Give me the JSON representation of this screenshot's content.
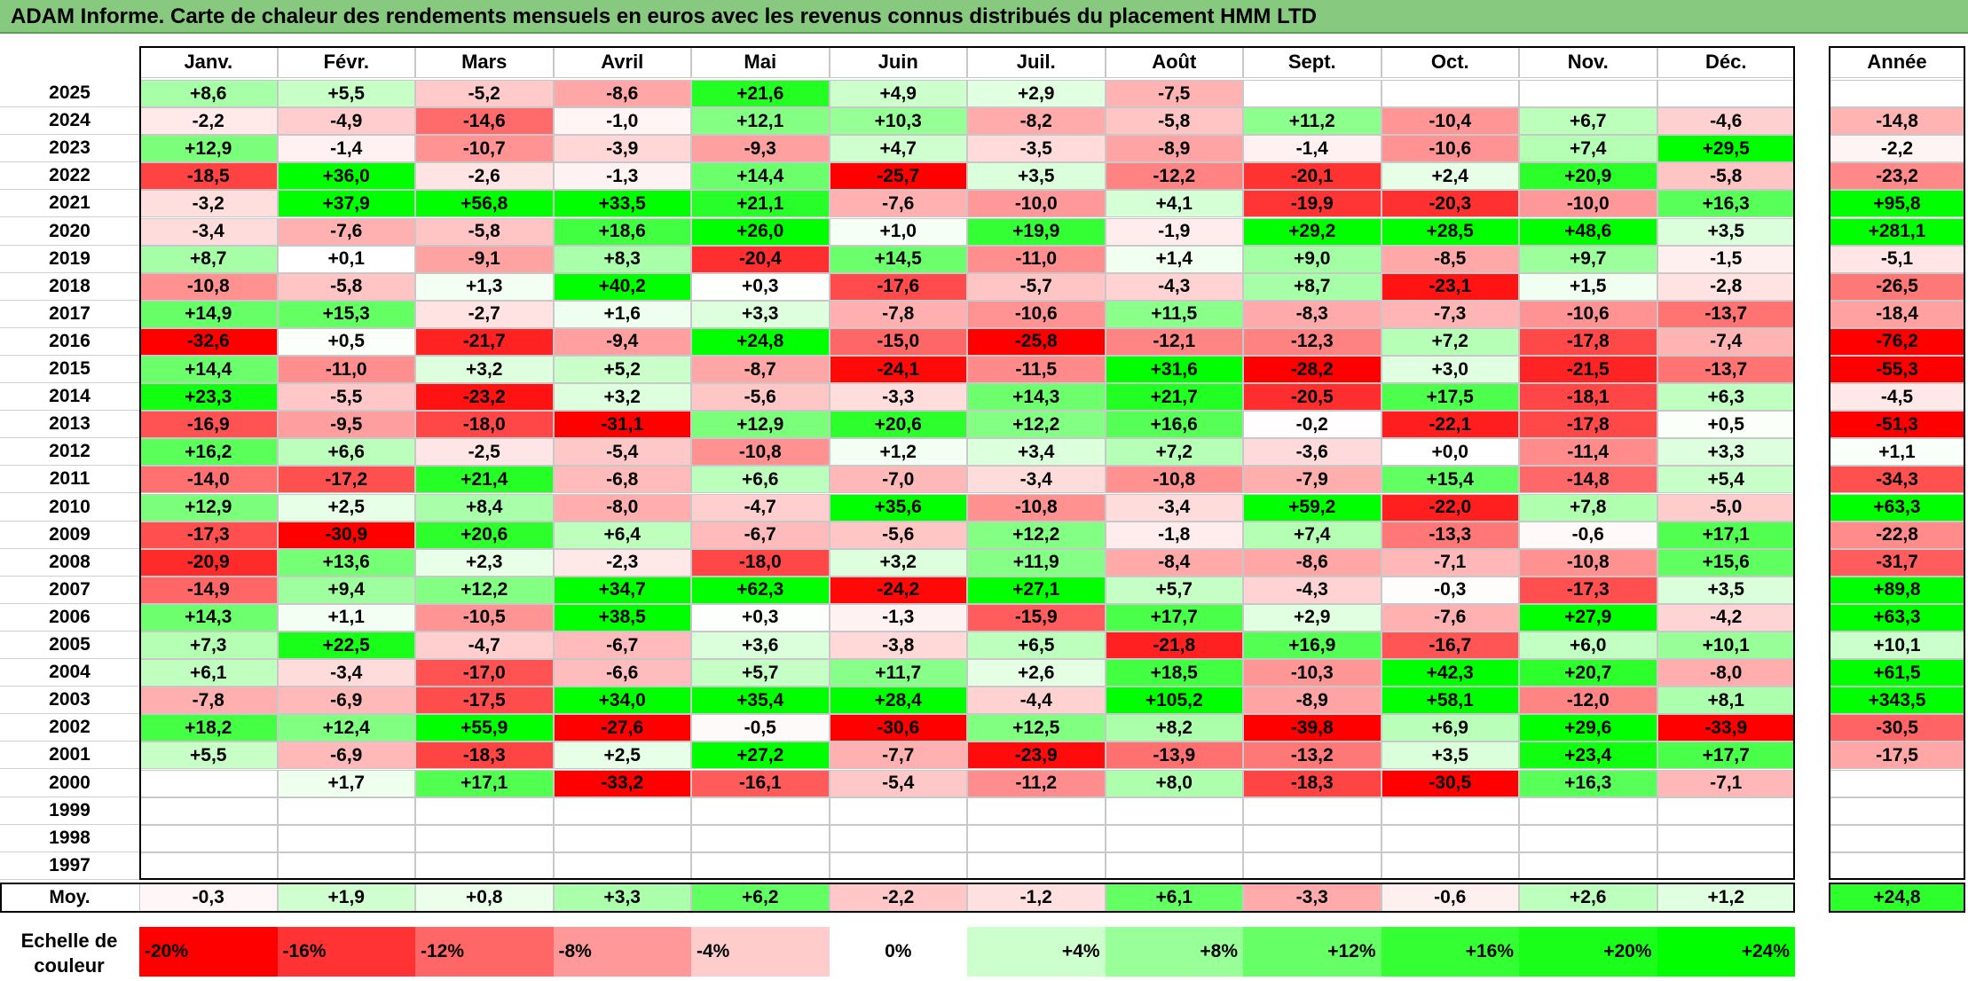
{
  "title": "ADAM Informe. Carte de chaleur des rendements mensuels en euros avec les revenus connus distribués du placement HMM LTD",
  "chart_data": {
    "type": "heatmap",
    "title": "ADAM Informe. Carte de chaleur des rendements mensuels en euros avec les revenus connus distribués du placement HMM LTD",
    "columns": [
      "Janv.",
      "Févr.",
      "Mars",
      "Avril",
      "Mai",
      "Juin",
      "Juil.",
      "Août",
      "Sept.",
      "Oct.",
      "Nov.",
      "Déc."
    ],
    "year_header": "Année",
    "rows": [
      {
        "year": "2025",
        "months": [
          "+8,6",
          "+5,5",
          "-5,2",
          "-8,6",
          "+21,6",
          "+4,9",
          "+2,9",
          "-7,5",
          "",
          "",
          "",
          ""
        ],
        "annual": ""
      },
      {
        "year": "2024",
        "months": [
          "-2,2",
          "-4,9",
          "-14,6",
          "-1,0",
          "+12,1",
          "+10,3",
          "-8,2",
          "-5,8",
          "+11,2",
          "-10,4",
          "+6,7",
          "-4,6"
        ],
        "annual": "-14,8"
      },
      {
        "year": "2023",
        "months": [
          "+12,9",
          "-1,4",
          "-10,7",
          "-3,9",
          "-9,3",
          "+4,7",
          "-3,5",
          "-8,9",
          "-1,4",
          "-10,6",
          "+7,4",
          "+29,5"
        ],
        "annual": "-2,2"
      },
      {
        "year": "2022",
        "months": [
          "-18,5",
          "+36,0",
          "-2,6",
          "-1,3",
          "+14,4",
          "-25,7",
          "+3,5",
          "-12,2",
          "-20,1",
          "+2,4",
          "+20,9",
          "-5,8"
        ],
        "annual": "-23,2"
      },
      {
        "year": "2021",
        "months": [
          "-3,2",
          "+37,9",
          "+56,8",
          "+33,5",
          "+21,1",
          "-7,6",
          "-10,0",
          "+4,1",
          "-19,9",
          "-20,3",
          "-10,0",
          "+16,3"
        ],
        "annual": "+95,8"
      },
      {
        "year": "2020",
        "months": [
          "-3,4",
          "-7,6",
          "-5,8",
          "+18,6",
          "+26,0",
          "+1,0",
          "+19,9",
          "-1,9",
          "+29,2",
          "+28,5",
          "+48,6",
          "+3,5"
        ],
        "annual": "+281,1"
      },
      {
        "year": "2019",
        "months": [
          "+8,7",
          "+0,1",
          "-9,1",
          "+8,3",
          "-20,4",
          "+14,5",
          "-11,0",
          "+1,4",
          "+9,0",
          "-8,5",
          "+9,7",
          "-1,5"
        ],
        "annual": "-5,1"
      },
      {
        "year": "2018",
        "months": [
          "-10,8",
          "-5,8",
          "+1,3",
          "+40,2",
          "+0,3",
          "-17,6",
          "-5,7",
          "-4,3",
          "+8,7",
          "-23,1",
          "+1,5",
          "-2,8"
        ],
        "annual": "-26,5"
      },
      {
        "year": "2017",
        "months": [
          "+14,9",
          "+15,3",
          "-2,7",
          "+1,6",
          "+3,3",
          "-7,8",
          "-10,6",
          "+11,5",
          "-8,3",
          "-7,3",
          "-10,6",
          "-13,7"
        ],
        "annual": "-18,4"
      },
      {
        "year": "2016",
        "months": [
          "-32,6",
          "+0,5",
          "-21,7",
          "-9,4",
          "+24,8",
          "-15,0",
          "-25,8",
          "-12,1",
          "-12,3",
          "+7,2",
          "-17,8",
          "-7,4"
        ],
        "annual": "-76,2"
      },
      {
        "year": "2015",
        "months": [
          "+14,4",
          "-11,0",
          "+3,2",
          "+5,2",
          "-8,7",
          "-24,1",
          "-11,5",
          "+31,6",
          "-28,2",
          "+3,0",
          "-21,5",
          "-13,7"
        ],
        "annual": "-55,3"
      },
      {
        "year": "2014",
        "months": [
          "+23,3",
          "-5,5",
          "-23,2",
          "+3,2",
          "-5,6",
          "-3,3",
          "+14,3",
          "+21,7",
          "-20,5",
          "+17,5",
          "-18,1",
          "+6,3"
        ],
        "annual": "-4,5"
      },
      {
        "year": "2013",
        "months": [
          "-16,9",
          "-9,5",
          "-18,0",
          "-31,1",
          "+12,9",
          "+20,6",
          "+12,2",
          "+16,6",
          "-0,2",
          "-22,1",
          "-17,8",
          "+0,5"
        ],
        "annual": "-51,3"
      },
      {
        "year": "2012",
        "months": [
          "+16,2",
          "+6,6",
          "-2,5",
          "-5,4",
          "-10,8",
          "+1,2",
          "+3,4",
          "+7,2",
          "-3,6",
          "+0,0",
          "-11,4",
          "+3,3"
        ],
        "annual": "+1,1"
      },
      {
        "year": "2011",
        "months": [
          "-14,0",
          "-17,2",
          "+21,4",
          "-6,8",
          "+6,6",
          "-7,0",
          "-3,4",
          "-10,8",
          "-7,9",
          "+15,4",
          "-14,8",
          "+5,4"
        ],
        "annual": "-34,3"
      },
      {
        "year": "2010",
        "months": [
          "+12,9",
          "+2,5",
          "+8,4",
          "-8,0",
          "-4,7",
          "+35,6",
          "-10,8",
          "-3,4",
          "+59,2",
          "-22,0",
          "+7,8",
          "-5,0"
        ],
        "annual": "+63,3"
      },
      {
        "year": "2009",
        "months": [
          "-17,3",
          "-30,9",
          "+20,6",
          "+6,4",
          "-6,7",
          "-5,6",
          "+12,2",
          "-1,8",
          "+7,4",
          "-13,3",
          "-0,6",
          "+17,1"
        ],
        "annual": "-22,8"
      },
      {
        "year": "2008",
        "months": [
          "-20,9",
          "+13,6",
          "+2,3",
          "-2,3",
          "-18,0",
          "+3,2",
          "+11,9",
          "-8,4",
          "-8,6",
          "-7,1",
          "-10,8",
          "+15,6"
        ],
        "annual": "-31,7"
      },
      {
        "year": "2007",
        "months": [
          "-14,9",
          "+9,4",
          "+12,2",
          "+34,7",
          "+62,3",
          "-24,2",
          "+27,1",
          "+5,7",
          "-4,3",
          "-0,3",
          "-17,3",
          "+3,5"
        ],
        "annual": "+89,8"
      },
      {
        "year": "2006",
        "months": [
          "+14,3",
          "+1,1",
          "-10,5",
          "+38,5",
          "+0,3",
          "-1,3",
          "-15,9",
          "+17,7",
          "+2,9",
          "-7,6",
          "+27,9",
          "-4,2"
        ],
        "annual": "+63,3"
      },
      {
        "year": "2005",
        "months": [
          "+7,3",
          "+22,5",
          "-4,7",
          "-6,7",
          "+3,6",
          "-3,8",
          "+6,5",
          "-21,8",
          "+16,9",
          "-16,7",
          "+6,0",
          "+10,1"
        ],
        "annual": "+10,1"
      },
      {
        "year": "2004",
        "months": [
          "+6,1",
          "-3,4",
          "-17,0",
          "-6,6",
          "+5,7",
          "+11,7",
          "+2,6",
          "+18,5",
          "-10,3",
          "+42,3",
          "+20,7",
          "-8,0"
        ],
        "annual": "+61,5"
      },
      {
        "year": "2003",
        "months": [
          "-7,8",
          "-6,9",
          "-17,5",
          "+34,0",
          "+35,4",
          "+28,4",
          "-4,4",
          "+105,2",
          "-8,9",
          "+58,1",
          "-12,0",
          "+8,1"
        ],
        "annual": "+343,5"
      },
      {
        "year": "2002",
        "months": [
          "+18,2",
          "+12,4",
          "+55,9",
          "-27,6",
          "-0,5",
          "-30,6",
          "+12,5",
          "+8,2",
          "-39,8",
          "+6,9",
          "+29,6",
          "-33,9"
        ],
        "annual": "-30,5"
      },
      {
        "year": "2001",
        "months": [
          "+5,5",
          "-6,9",
          "-18,3",
          "+2,5",
          "+27,2",
          "-7,7",
          "-23,9",
          "-13,9",
          "-13,2",
          "+3,5",
          "+23,4",
          "+17,7"
        ],
        "annual": "-17,5"
      },
      {
        "year": "2000",
        "months": [
          "",
          "+1,7",
          "+17,1",
          "-33,2",
          "-16,1",
          "-5,4",
          "-11,2",
          "+8,0",
          "-18,3",
          "-30,5",
          "+16,3",
          "-7,1"
        ],
        "annual": ""
      },
      {
        "year": "1999",
        "months": [
          "",
          "",
          "",
          "",
          "",
          "",
          "",
          "",
          "",
          "",
          "",
          ""
        ],
        "annual": ""
      },
      {
        "year": "1998",
        "months": [
          "",
          "",
          "",
          "",
          "",
          "",
          "",
          "",
          "",
          "",
          "",
          ""
        ],
        "annual": ""
      },
      {
        "year": "1997",
        "months": [
          "",
          "",
          "",
          "",
          "",
          "",
          "",
          "",
          "",
          "",
          "",
          ""
        ],
        "annual": ""
      }
    ],
    "average": {
      "label": "Moy.",
      "months": [
        "-0,3",
        "+1,9",
        "+0,8",
        "+3,3",
        "+6,2",
        "-2,2",
        "-1,2",
        "+6,1",
        "-3,3",
        "-0,6",
        "+2,6",
        "+1,2"
      ],
      "annual": "+24,8"
    },
    "color_scale": {
      "label": "Echelle de couleur",
      "steps": [
        "-20%",
        "-16%",
        "-12%",
        "-8%",
        "-4%",
        "0%",
        "+4%",
        "+8%",
        "+12%",
        "+16%",
        "+20%",
        "+24%"
      ],
      "colors": [
        "#ff0000",
        "#ff3333",
        "#ff6666",
        "#ff9999",
        "#ffcccc",
        "#ffffff",
        "#ccffcc",
        "#99ff99",
        "#66ff66",
        "#33ff33",
        "#1aff1a",
        "#00ff00"
      ]
    },
    "colors": {
      "negative_max": "#ff0000",
      "neutral": "#ffffff",
      "positive_max": "#00ff00"
    }
  }
}
